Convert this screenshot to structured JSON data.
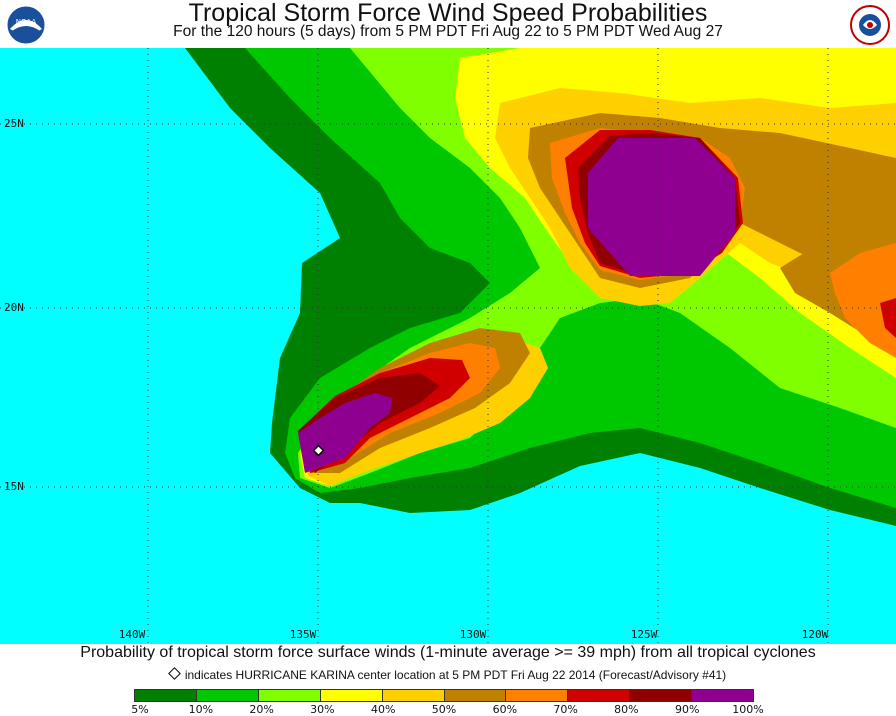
{
  "header": {
    "title": "Tropical Storm Force Wind Speed Probabilities",
    "subtitle": "For the 120 hours (5 days) from 5 PM PDT Fri Aug 22 to 5 PM PDT Wed Aug 27",
    "left_logo_text": "NOAA",
    "right_logo_text": "NATIONAL WEATHER SERVICE"
  },
  "map": {
    "background_color": "#00ffff",
    "lat_labels": [
      "25N",
      "20N",
      "15N"
    ],
    "lon_labels": [
      "140W",
      "135W",
      "130W",
      "125W",
      "120W"
    ],
    "storm_marker": "HURRICANE KARINA center"
  },
  "footer": {
    "caption": "Probability of tropical storm force surface winds (1-minute average >= 39 mph) from all tropical cyclones",
    "note": "indicates HURRICANE KARINA center location at 5 PM PDT Fri Aug 22 2014 (Forecast/Advisory #41)"
  },
  "legend": {
    "colors": [
      "#008000",
      "#00c800",
      "#80ff00",
      "#ffff00",
      "#ffd000",
      "#c08000",
      "#ff8000",
      "#d00000",
      "#900000",
      "#900090"
    ],
    "labels": [
      "5%",
      "10%",
      "20%",
      "30%",
      "40%",
      "50%",
      "60%",
      "70%",
      "80%",
      "90%",
      "100%"
    ]
  }
}
